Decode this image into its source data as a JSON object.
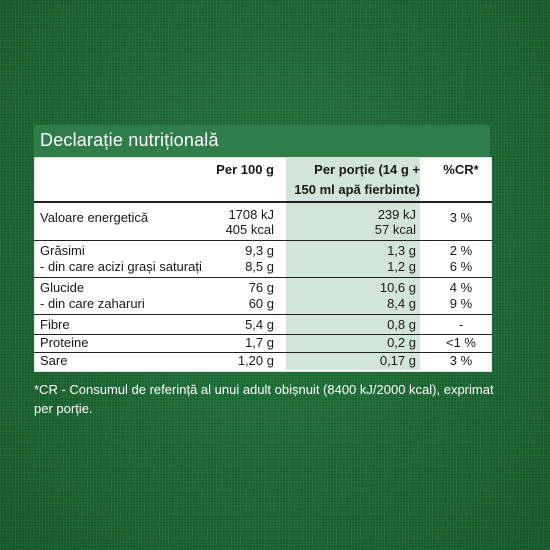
{
  "title": "Declarație nutrițională",
  "headers": {
    "per100": "Per 100 g",
    "portion_line1": "Per porție (14 g +",
    "portion_line2": "150 ml apă fierbinte)",
    "cr": "%CR*"
  },
  "rows": [
    {
      "label": "Valoare energetică",
      "per100": [
        "1708 kJ",
        "405 kcal"
      ],
      "portion": [
        "239 kJ",
        "57 kcal"
      ],
      "cr": "3 %"
    },
    {
      "label": "Grăsimi",
      "per100": "9,3 g",
      "portion": "1,3 g",
      "cr": "2 %"
    },
    {
      "label": "- din care acizi grași saturați",
      "per100": "8,5 g",
      "portion": "1,2 g",
      "cr": "6 %"
    },
    {
      "label": "Glucide",
      "per100": "76 g",
      "portion": "10,6 g",
      "cr": "4 %"
    },
    {
      "label": "- din care zaharuri",
      "per100": "60 g",
      "portion": "8,4 g",
      "cr": "9 %"
    },
    {
      "label": "Fibre",
      "per100": "5,4 g",
      "portion": "0,8 g",
      "cr": "-"
    },
    {
      "label": "Proteine",
      "per100": "1,7 g",
      "portion": "0,2 g",
      "cr": "<1 %"
    },
    {
      "label": "Sare",
      "per100": "1,20 g",
      "portion": "0,17 g",
      "cr": "3 %"
    }
  ],
  "footnote": "*CR - Consumul de referință al unui adult obișnuit (8400 kJ/2000 kcal), exprimat per porție.",
  "colors": {
    "background": "#1d6a35",
    "header_band": "#2e7d4a",
    "portion_column": "#d2e6d7"
  }
}
